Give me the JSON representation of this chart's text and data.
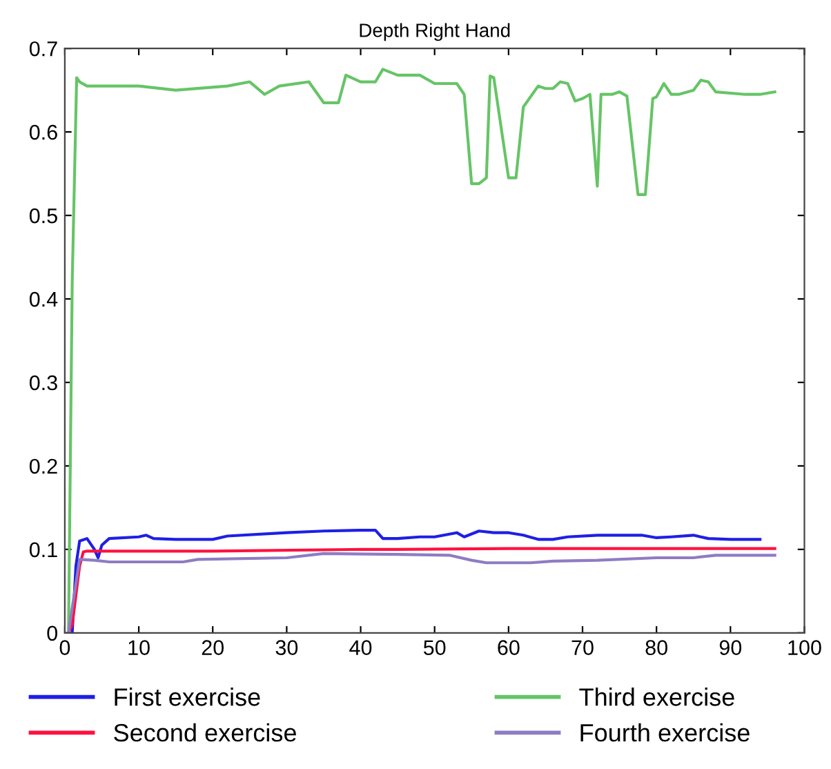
{
  "chart_data": {
    "type": "line",
    "title": "Depth Right Hand",
    "xlim": [
      0,
      100
    ],
    "ylim": [
      0,
      0.7
    ],
    "xticks": [
      0,
      10,
      20,
      30,
      40,
      50,
      60,
      70,
      80,
      90,
      100
    ],
    "yticks": [
      0,
      0.1,
      0.2,
      0.3,
      0.4,
      0.5,
      0.6,
      0.7
    ],
    "grid": false,
    "legend": "bottom",
    "marker": "none",
    "line_style": "solid",
    "series": [
      {
        "name": "First exercise",
        "color": "#1f1fe6",
        "x": [
          1,
          1.5,
          2,
          3,
          4,
          4.5,
          5,
          6,
          10,
          11,
          12,
          15,
          20,
          22,
          30,
          35,
          40,
          42,
          43,
          45,
          48,
          50,
          53,
          54,
          56,
          58,
          60,
          62,
          64,
          66,
          68,
          72,
          78,
          80,
          82,
          85,
          87,
          90,
          94
        ],
        "values": [
          0,
          0.08,
          0.11,
          0.113,
          0.1,
          0.09,
          0.105,
          0.113,
          0.115,
          0.117,
          0.113,
          0.112,
          0.112,
          0.116,
          0.12,
          0.122,
          0.123,
          0.123,
          0.113,
          0.113,
          0.115,
          0.115,
          0.12,
          0.115,
          0.122,
          0.12,
          0.12,
          0.117,
          0.112,
          0.112,
          0.115,
          0.117,
          0.117,
          0.114,
          0.115,
          0.117,
          0.113,
          0.112,
          0.112
        ]
      },
      {
        "name": "Second exercise",
        "color": "#ff1040",
        "x": [
          0.5,
          1,
          2,
          2.5,
          3,
          20,
          40,
          45,
          60,
          96
        ],
        "values": [
          0,
          0.01,
          0.08,
          0.097,
          0.098,
          0.098,
          0.1,
          0.1,
          0.101,
          0.101
        ]
      },
      {
        "name": "Third exercise",
        "color": "#66c466",
        "x": [
          0.5,
          1,
          1.6,
          2,
          3,
          10,
          15,
          22,
          25,
          27,
          29,
          33,
          35,
          37,
          38,
          40,
          42,
          43,
          45,
          48,
          50,
          53,
          54,
          55,
          56,
          57,
          57.5,
          58,
          60,
          61,
          62,
          64,
          65,
          66,
          67,
          68,
          69,
          70,
          71,
          72,
          72.5,
          74,
          75,
          76,
          77.5,
          78.5,
          79.5,
          80,
          81,
          82,
          83,
          85,
          86,
          87,
          88,
          92,
          94,
          96
        ],
        "values": [
          0,
          0.42,
          0.665,
          0.66,
          0.655,
          0.655,
          0.65,
          0.655,
          0.66,
          0.645,
          0.655,
          0.66,
          0.635,
          0.635,
          0.668,
          0.66,
          0.66,
          0.675,
          0.668,
          0.668,
          0.658,
          0.658,
          0.645,
          0.538,
          0.538,
          0.545,
          0.667,
          0.665,
          0.545,
          0.545,
          0.63,
          0.655,
          0.652,
          0.652,
          0.66,
          0.658,
          0.637,
          0.64,
          0.645,
          0.535,
          0.645,
          0.645,
          0.648,
          0.643,
          0.525,
          0.525,
          0.64,
          0.642,
          0.658,
          0.645,
          0.645,
          0.65,
          0.662,
          0.66,
          0.648,
          0.645,
          0.645,
          0.648
        ]
      },
      {
        "name": "Fourth exercise",
        "color": "#8e7cc3",
        "x": [
          0.5,
          1,
          2,
          4,
          6,
          16,
          18,
          30,
          35,
          45,
          52,
          55,
          57,
          63,
          66,
          72,
          80,
          85,
          88,
          96
        ],
        "values": [
          0,
          0.03,
          0.088,
          0.087,
          0.085,
          0.085,
          0.088,
          0.09,
          0.095,
          0.094,
          0.093,
          0.087,
          0.084,
          0.084,
          0.086,
          0.087,
          0.09,
          0.09,
          0.093,
          0.093
        ]
      }
    ]
  }
}
